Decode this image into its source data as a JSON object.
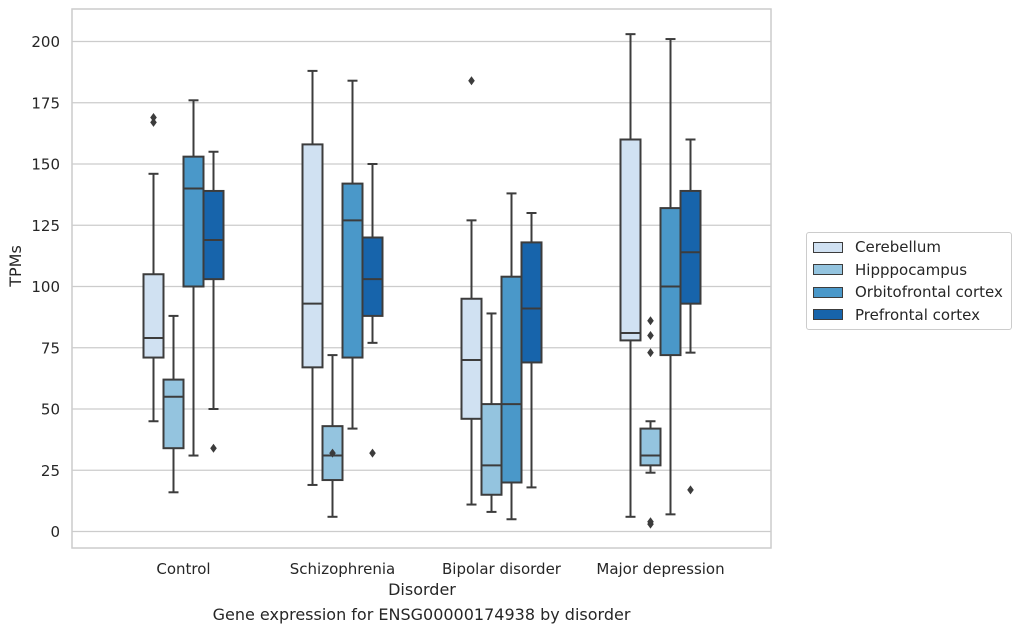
{
  "caption": "Gene expression for ENSG00000174938 by disorder",
  "colors": {
    "grid": "#cccccc",
    "frame": "#cccccc",
    "line": "#3c3c3c",
    "Cerebellum": "#d0e1f2",
    "Hipppocampus": "#94c4df",
    "Orbitofrontal cortex": "#4a98c9",
    "Prefrontal cortex": "#1764ab"
  },
  "chart_data": {
    "type": "box",
    "xlabel": "Disorder",
    "ylabel": "TPMs",
    "ylim": [
      -6.5,
      213
    ],
    "yticks": [
      0,
      25,
      50,
      75,
      100,
      125,
      150,
      175,
      200
    ],
    "grid": "horizontal",
    "legend_position": "right",
    "categories": [
      "Control",
      "Schizophrenia",
      "Bipolar disorder",
      "Major depression"
    ],
    "series": [
      {
        "name": "Cerebellum",
        "boxes": [
          {
            "whisker_low": 45,
            "q1": 71,
            "median": 79,
            "q3": 105,
            "whisker_high": 146,
            "outliers": [
              167,
              169
            ]
          },
          {
            "whisker_low": 19,
            "q1": 67,
            "median": 93,
            "q3": 158,
            "whisker_high": 188,
            "outliers": []
          },
          {
            "whisker_low": 11,
            "q1": 46,
            "median": 70,
            "q3": 95,
            "whisker_high": 127,
            "outliers": [
              184
            ]
          },
          {
            "whisker_low": 6,
            "q1": 78,
            "median": 81,
            "q3": 160,
            "whisker_high": 203,
            "outliers": []
          }
        ]
      },
      {
        "name": "Hipppocampus",
        "boxes": [
          {
            "whisker_low": 16,
            "q1": 34,
            "median": 55,
            "q3": 62,
            "whisker_high": 88,
            "outliers": []
          },
          {
            "whisker_low": 6,
            "q1": 21,
            "median": 31,
            "q3": 43,
            "whisker_high": 72,
            "outliers": [
              32
            ]
          },
          {
            "whisker_low": 8,
            "q1": 15,
            "median": 27,
            "q3": 52,
            "whisker_high": 89,
            "outliers": []
          },
          {
            "whisker_low": 24,
            "q1": 27,
            "median": 31,
            "q3": 42,
            "whisker_high": 45,
            "outliers": [
              73,
              80,
              86,
              3,
              4
            ]
          }
        ]
      },
      {
        "name": "Orbitofrontal cortex",
        "boxes": [
          {
            "whisker_low": 31,
            "q1": 100,
            "median": 140,
            "q3": 153,
            "whisker_high": 176,
            "outliers": []
          },
          {
            "whisker_low": 42,
            "q1": 71,
            "median": 127,
            "q3": 142,
            "whisker_high": 184,
            "outliers": []
          },
          {
            "whisker_low": 5,
            "q1": 20,
            "median": 52,
            "q3": 104,
            "whisker_high": 138,
            "outliers": []
          },
          {
            "whisker_low": 7,
            "q1": 72,
            "median": 100,
            "q3": 132,
            "whisker_high": 201,
            "outliers": []
          }
        ]
      },
      {
        "name": "Prefrontal cortex",
        "boxes": [
          {
            "whisker_low": 50,
            "q1": 103,
            "median": 119,
            "q3": 139,
            "whisker_high": 155,
            "outliers": [
              34
            ]
          },
          {
            "whisker_low": 77,
            "q1": 88,
            "median": 103,
            "q3": 120,
            "whisker_high": 150,
            "outliers": [
              32
            ]
          },
          {
            "whisker_low": 18,
            "q1": 69,
            "median": 91,
            "q3": 118,
            "whisker_high": 130,
            "outliers": []
          },
          {
            "whisker_low": 73,
            "q1": 93,
            "median": 114,
            "q3": 139,
            "whisker_high": 160,
            "outliers": [
              17
            ]
          }
        ]
      }
    ]
  }
}
